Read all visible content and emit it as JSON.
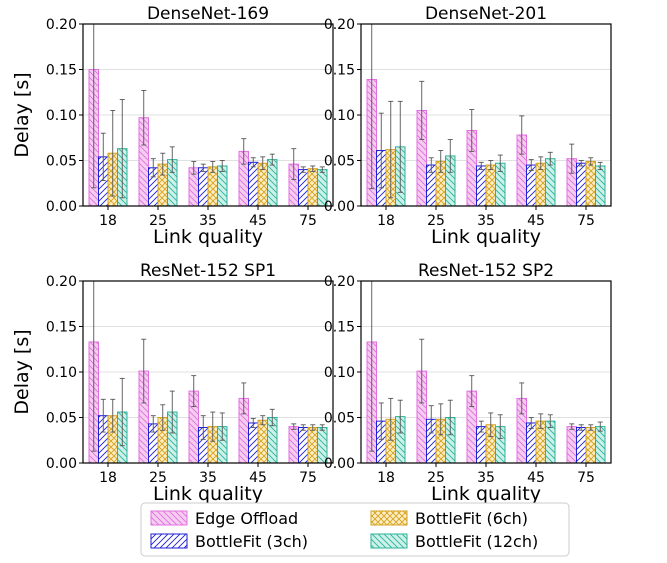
{
  "chart_data": [
    {
      "type": "bar",
      "title": "DenseNet-169",
      "xlabel": "Link quality",
      "ylabel": "Delay [s]",
      "ylim": [
        0,
        0.2
      ],
      "yticks": [
        "0.00",
        "0.05",
        "0.10",
        "0.15",
        "0.20"
      ],
      "grid": "horizontal",
      "categories": [
        "18",
        "25",
        "35",
        "45",
        "75"
      ],
      "series": [
        {
          "name": "Edge Offload",
          "values": [
            0.15,
            0.097,
            0.042,
            0.06,
            0.046
          ],
          "err": [
            0.13,
            0.03,
            0.007,
            0.014,
            0.017
          ]
        },
        {
          "name": "BottleFit (3ch)",
          "values": [
            0.054,
            0.042,
            0.042,
            0.048,
            0.04
          ],
          "err": [
            0.026,
            0.01,
            0.004,
            0.005,
            0.003
          ]
        },
        {
          "name": "BottleFit (6ch)",
          "values": [
            0.058,
            0.046,
            0.043,
            0.047,
            0.041
          ],
          "err": [
            0.047,
            0.012,
            0.006,
            0.007,
            0.003
          ]
        },
        {
          "name": "BottleFit (12ch)",
          "values": [
            0.063,
            0.051,
            0.044,
            0.051,
            0.04
          ],
          "err": [
            0.054,
            0.014,
            0.006,
            0.006,
            0.003
          ]
        }
      ]
    },
    {
      "type": "bar",
      "title": "DenseNet-201",
      "xlabel": "Link quality",
      "ylabel": "",
      "ylim": [
        0,
        0.2
      ],
      "yticks": [
        "0.00",
        "0.05",
        "0.10",
        "0.15",
        "0.20"
      ],
      "grid": "horizontal",
      "categories": [
        "18",
        "25",
        "35",
        "45",
        "75"
      ],
      "series": [
        {
          "name": "Edge Offload",
          "values": [
            0.139,
            0.105,
            0.083,
            0.078,
            0.052
          ],
          "err": [
            0.12,
            0.032,
            0.023,
            0.021,
            0.016
          ]
        },
        {
          "name": "BottleFit (3ch)",
          "values": [
            0.061,
            0.045,
            0.044,
            0.045,
            0.047
          ],
          "err": [
            0.041,
            0.008,
            0.004,
            0.006,
            0.003
          ]
        },
        {
          "name": "BottleFit (6ch)",
          "values": [
            0.062,
            0.049,
            0.045,
            0.047,
            0.049
          ],
          "err": [
            0.053,
            0.012,
            0.005,
            0.007,
            0.004
          ]
        },
        {
          "name": "BottleFit (12ch)",
          "values": [
            0.065,
            0.055,
            0.047,
            0.052,
            0.044
          ],
          "err": [
            0.05,
            0.018,
            0.009,
            0.007,
            0.004
          ]
        }
      ]
    },
    {
      "type": "bar",
      "title": "ResNet-152 SP1",
      "xlabel": "Link quality",
      "ylabel": "Delay [s]",
      "ylim": [
        0,
        0.2
      ],
      "yticks": [
        "0.00",
        "0.05",
        "0.10",
        "0.15",
        "0.20"
      ],
      "grid": "horizontal",
      "categories": [
        "18",
        "25",
        "35",
        "45",
        "75"
      ],
      "series": [
        {
          "name": "Edge Offload",
          "values": [
            0.133,
            0.101,
            0.079,
            0.071,
            0.04
          ],
          "err": [
            0.12,
            0.035,
            0.017,
            0.017,
            0.003
          ]
        },
        {
          "name": "BottleFit (3ch)",
          "values": [
            0.052,
            0.043,
            0.039,
            0.044,
            0.039
          ],
          "err": [
            0.018,
            0.009,
            0.013,
            0.005,
            0.003
          ]
        },
        {
          "name": "BottleFit (6ch)",
          "values": [
            0.052,
            0.05,
            0.04,
            0.047,
            0.039
          ],
          "err": [
            0.018,
            0.014,
            0.016,
            0.005,
            0.003
          ]
        },
        {
          "name": "BottleFit (12ch)",
          "values": [
            0.056,
            0.056,
            0.04,
            0.05,
            0.039
          ],
          "err": [
            0.037,
            0.023,
            0.015,
            0.009,
            0.003
          ]
        }
      ]
    },
    {
      "type": "bar",
      "title": "ResNet-152 SP2",
      "xlabel": "Link quality",
      "ylabel": "",
      "ylim": [
        0,
        0.2
      ],
      "yticks": [
        "0.00",
        "0.05",
        "0.10",
        "0.15",
        "0.20"
      ],
      "grid": "horizontal",
      "categories": [
        "18",
        "25",
        "35",
        "45",
        "75"
      ],
      "series": [
        {
          "name": "Edge Offload",
          "values": [
            0.133,
            0.101,
            0.079,
            0.071,
            0.04
          ],
          "err": [
            0.12,
            0.035,
            0.017,
            0.017,
            0.003
          ]
        },
        {
          "name": "BottleFit (3ch)",
          "values": [
            0.046,
            0.048,
            0.04,
            0.044,
            0.039
          ],
          "err": [
            0.02,
            0.015,
            0.006,
            0.006,
            0.003
          ]
        },
        {
          "name": "BottleFit (6ch)",
          "values": [
            0.048,
            0.048,
            0.042,
            0.046,
            0.039
          ],
          "err": [
            0.023,
            0.017,
            0.013,
            0.008,
            0.003
          ]
        },
        {
          "name": "BottleFit (12ch)",
          "values": [
            0.051,
            0.05,
            0.04,
            0.046,
            0.04
          ],
          "err": [
            0.018,
            0.019,
            0.013,
            0.007,
            0.005
          ]
        }
      ]
    }
  ],
  "legend": {
    "placement": "bottom",
    "items": [
      {
        "label": "Edge Offload",
        "fill": "#f5cdef",
        "stroke": "#e26fe0",
        "hatch": "backslash"
      },
      {
        "label": "BottleFit (6ch)",
        "fill": "#fcedc4",
        "stroke": "#d6a21e",
        "hatch": "cross"
      },
      {
        "label": "BottleFit (3ch)",
        "fill": "#ffffff",
        "stroke": "#1f1fd6",
        "hatch": "slash"
      },
      {
        "label": "BottleFit (12ch)",
        "fill": "#cdf1e9",
        "stroke": "#2bb39a",
        "hatch": "backslash"
      }
    ]
  },
  "series_styles": [
    {
      "fill": "#f5cdef",
      "stroke": "#e26fe0",
      "hatch": "backslash"
    },
    {
      "fill": "#ffffff",
      "stroke": "#1f1fd6",
      "hatch": "slash"
    },
    {
      "fill": "#fcedc4",
      "stroke": "#d6a21e",
      "hatch": "cross"
    },
    {
      "fill": "#cdf1e9",
      "stroke": "#2bb39a",
      "hatch": "backslash"
    }
  ]
}
